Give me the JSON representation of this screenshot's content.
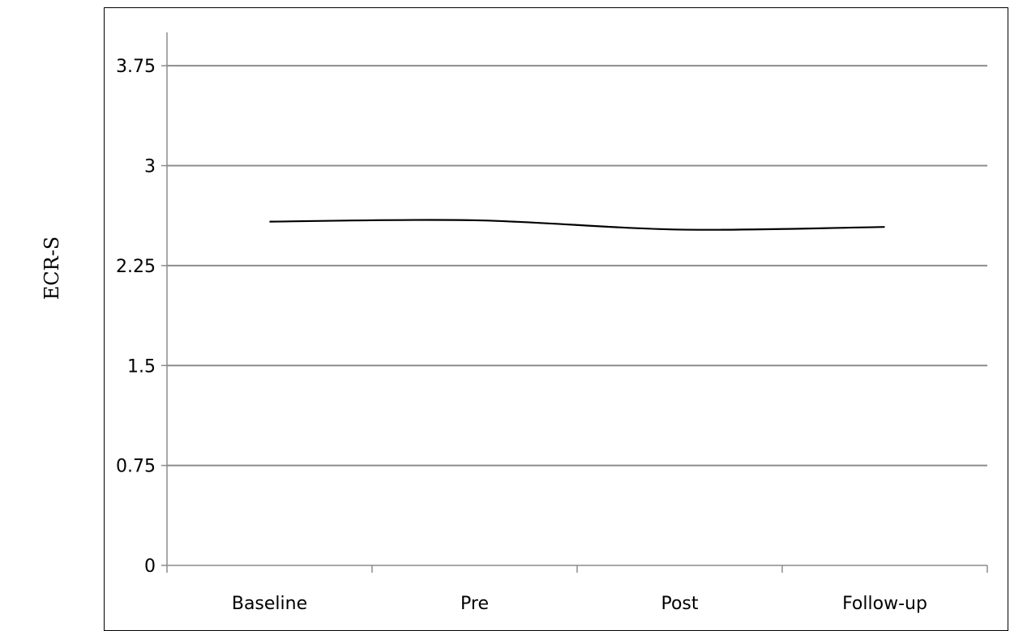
{
  "chart_data": {
    "type": "line",
    "title": "",
    "xlabel": "",
    "ylabel": "ECR-S",
    "categories": [
      "Baseline",
      "Pre",
      "Post",
      "Follow-up"
    ],
    "series": [
      {
        "values": [
          2.58,
          2.59,
          2.52,
          2.54
        ]
      }
    ],
    "ylim": [
      0,
      4
    ],
    "yticks": [
      "0",
      "0.75",
      "1.5",
      "2.25",
      "3",
      "3.75"
    ],
    "ytick_values": [
      0,
      0.75,
      1.5,
      2.25,
      3,
      3.75
    ],
    "grid": true,
    "legend": "none",
    "line_style": "smooth",
    "colors": {
      "line": "#000000",
      "grid": "#8c8c8c",
      "axis": "#8c8c8c"
    }
  }
}
